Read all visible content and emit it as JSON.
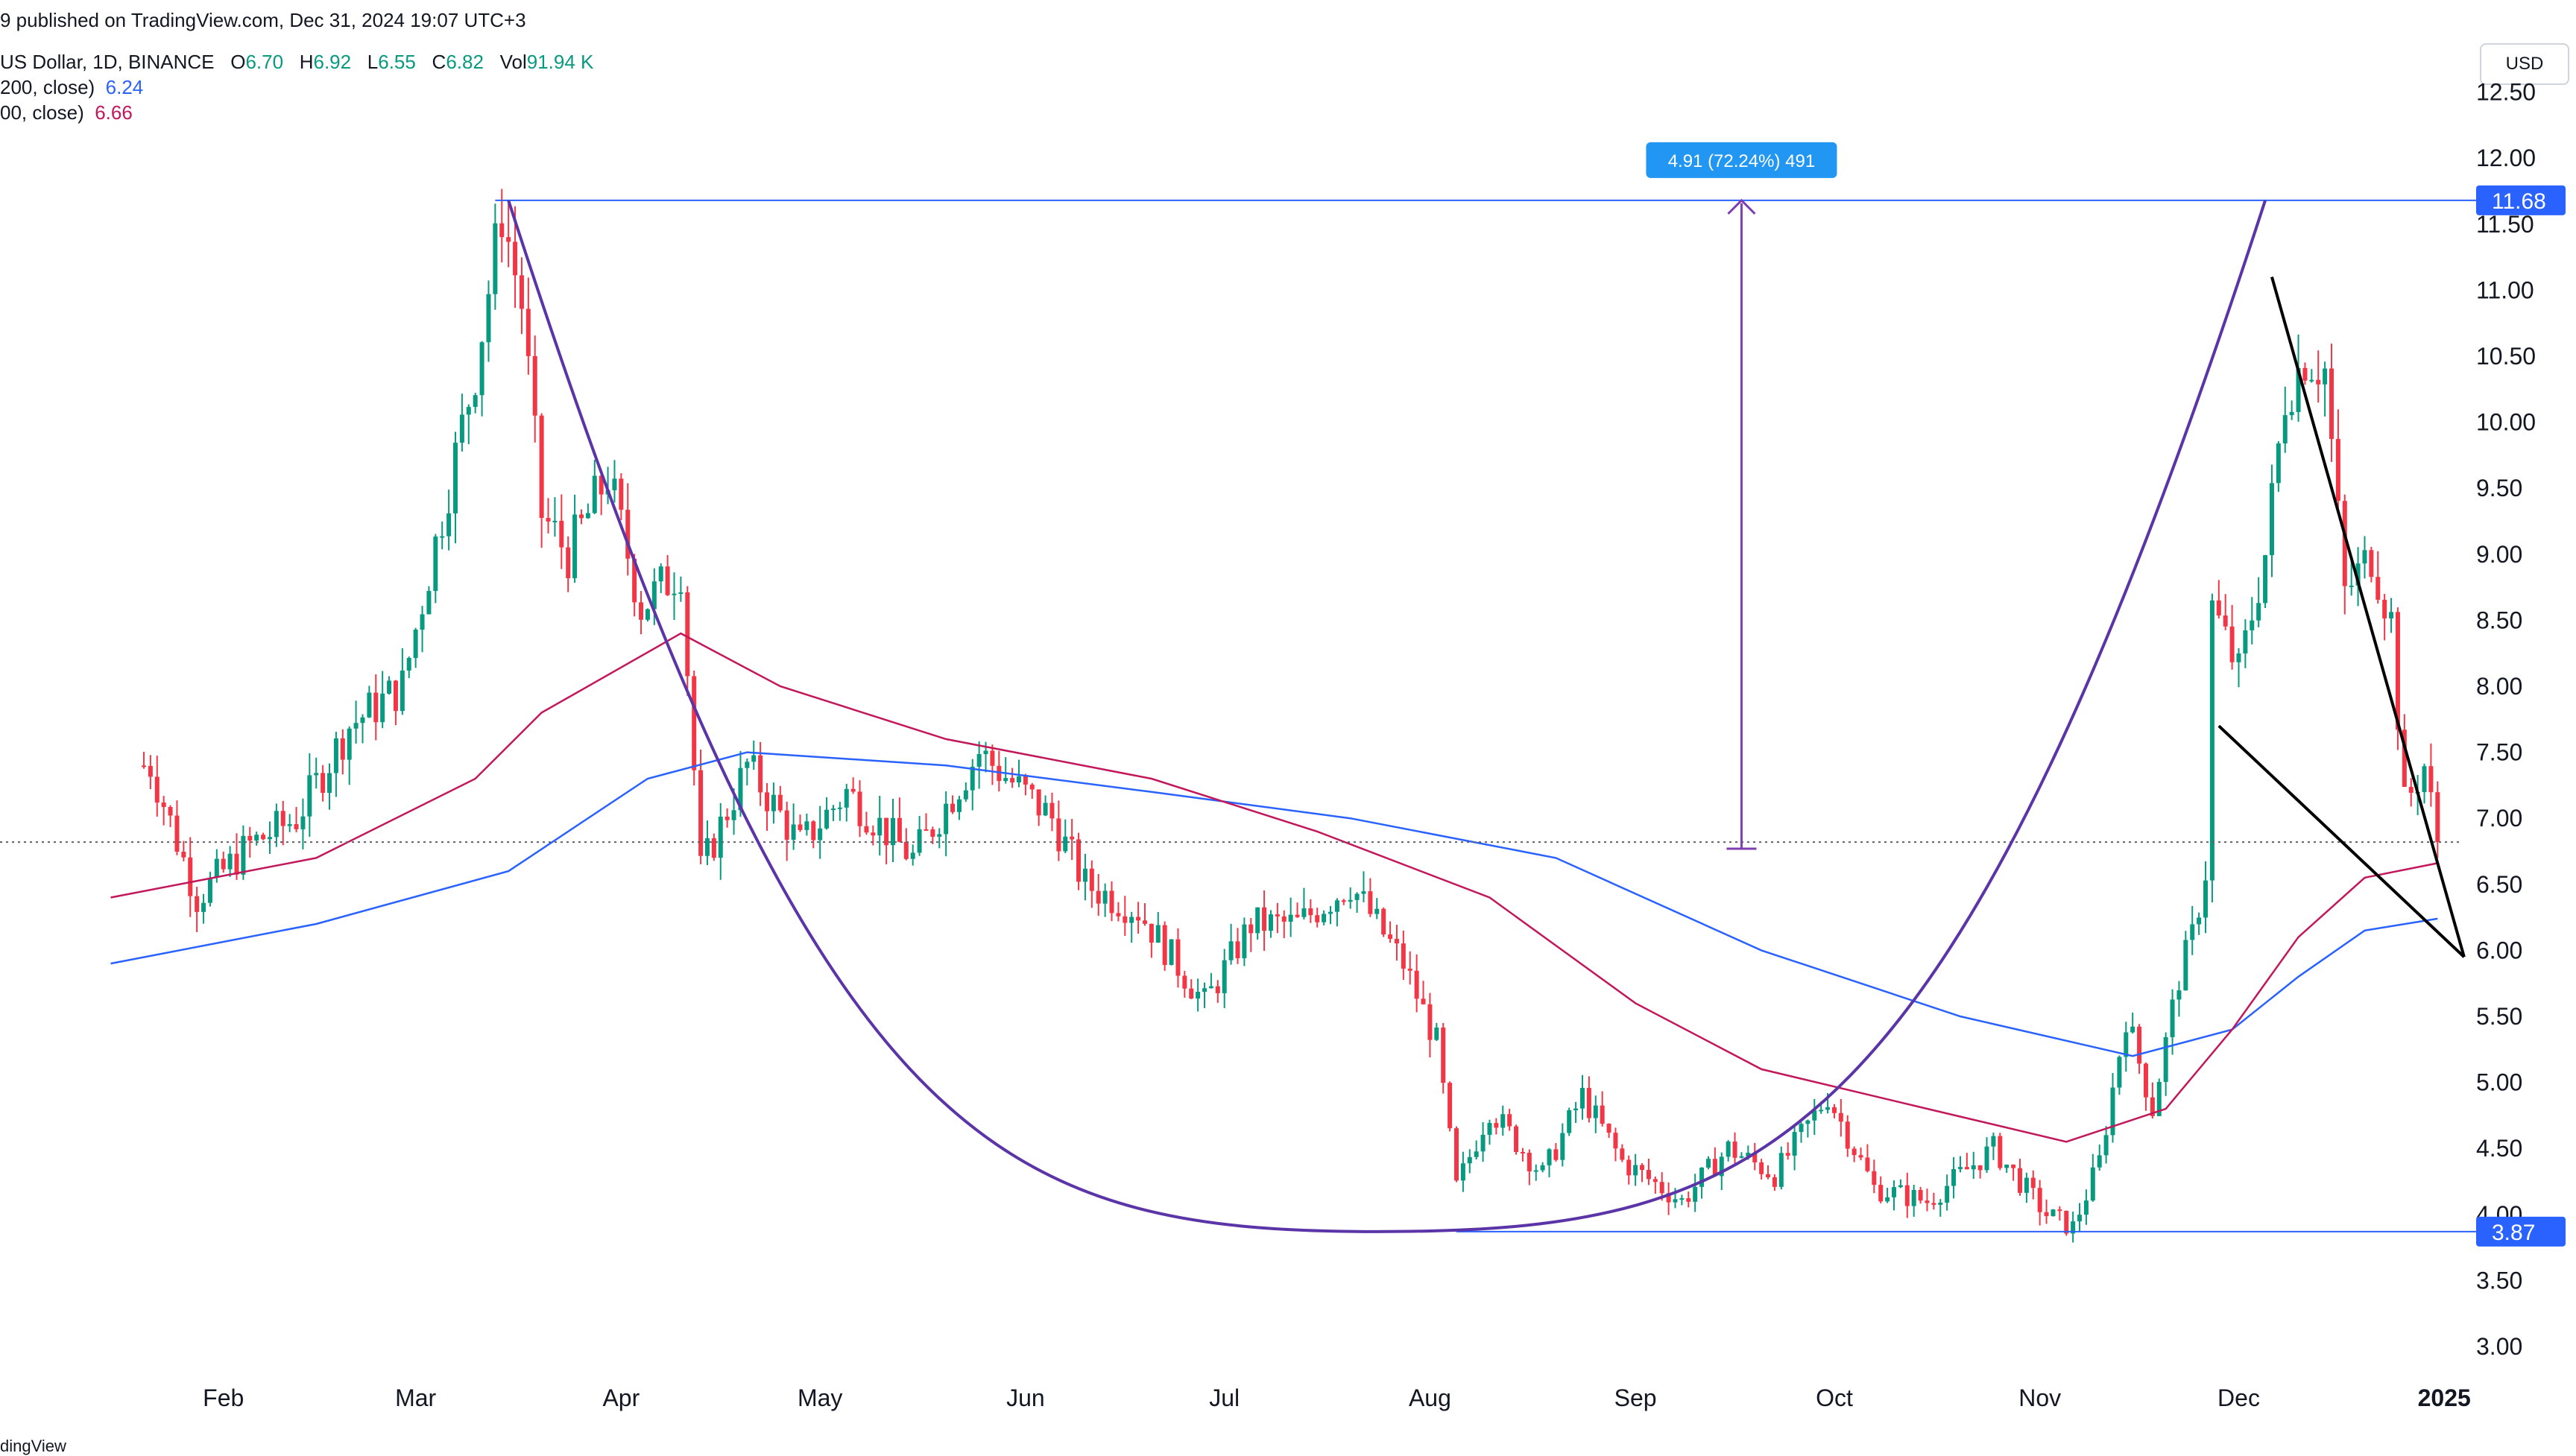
{
  "header": {
    "published": "9 published on TradingView.com, Dec 31, 2024 19:07 UTC+3",
    "symbol": "US Dollar, 1D, BINANCE",
    "o_label": "O",
    "o_value": "6.70",
    "h_label": "H",
    "h_value": "6.92",
    "l_label": "L",
    "l_value": "6.55",
    "c_label": "C",
    "c_value": "6.82",
    "vol_label": "Vol",
    "vol_value": "91.94 K",
    "ma1_label": "200, close)",
    "ma1_value": "6.24",
    "ma2_label": "00, close)",
    "ma2_value": "6.66"
  },
  "currency": "USD",
  "footer": "dingView",
  "colors": {
    "up": "#089981",
    "down": "#f23645",
    "ma200": "#2962ff",
    "ma100": "#c2185b",
    "cup": "#5b34a8",
    "measure": "#7e3fb2",
    "hline": "#2962ff",
    "wedge": "#000000"
  },
  "chart_data": {
    "type": "candlestick",
    "x_axis": {
      "tick_labels": [
        "Feb",
        "Mar",
        "Apr",
        "May",
        "Jun",
        "Jul",
        "Aug",
        "Sep",
        "Oct",
        "Nov",
        "Dec",
        "2025"
      ]
    },
    "y_axis": {
      "range": [
        2.7,
        12.9
      ],
      "tick_labels": [
        "3.00",
        "3.50",
        "4.00",
        "4.50",
        "5.00",
        "5.50",
        "6.00",
        "6.50",
        "7.00",
        "7.50",
        "8.00",
        "8.50",
        "9.00",
        "9.50",
        "10.00",
        "10.50",
        "11.00",
        "11.50",
        "12.00",
        "12.50"
      ],
      "position": "right"
    },
    "price_waypoints": [
      [
        "2024-01-21",
        7.4
      ],
      [
        "2024-01-28",
        6.4
      ],
      [
        "2024-02-05",
        6.8
      ],
      [
        "2024-02-12",
        7.0
      ],
      [
        "2024-02-20",
        7.7
      ],
      [
        "2024-02-28",
        8.0
      ],
      [
        "2024-03-05",
        9.3
      ],
      [
        "2024-03-10",
        10.4
      ],
      [
        "2024-03-14",
        11.6
      ],
      [
        "2024-03-17",
        10.9
      ],
      [
        "2024-03-20",
        9.3
      ],
      [
        "2024-03-24",
        9.0
      ],
      [
        "2024-03-30",
        9.6
      ],
      [
        "2024-04-04",
        8.6
      ],
      [
        "2024-04-10",
        8.9
      ],
      [
        "2024-04-13",
        6.6
      ],
      [
        "2024-04-20",
        7.4
      ],
      [
        "2024-04-28",
        6.8
      ],
      [
        "2024-05-05",
        7.2
      ],
      [
        "2024-05-15",
        6.7
      ],
      [
        "2024-05-25",
        7.5
      ],
      [
        "2024-06-05",
        7.0
      ],
      [
        "2024-06-10",
        6.5
      ],
      [
        "2024-06-18",
        6.3
      ],
      [
        "2024-06-28",
        5.6
      ],
      [
        "2024-07-05",
        6.2
      ],
      [
        "2024-07-12",
        6.2
      ],
      [
        "2024-07-20",
        6.5
      ],
      [
        "2024-07-28",
        5.9
      ],
      [
        "2024-08-02",
        5.3
      ],
      [
        "2024-08-05",
        4.2
      ],
      [
        "2024-08-10",
        4.8
      ],
      [
        "2024-08-18",
        4.3
      ],
      [
        "2024-08-24",
        4.9
      ],
      [
        "2024-08-30",
        4.4
      ],
      [
        "2024-09-08",
        4.1
      ],
      [
        "2024-09-15",
        4.5
      ],
      [
        "2024-09-22",
        4.3
      ],
      [
        "2024-09-30",
        4.9
      ],
      [
        "2024-10-07",
        4.2
      ],
      [
        "2024-10-15",
        4.1
      ],
      [
        "2024-10-25",
        4.5
      ],
      [
        "2024-11-02",
        4.0
      ],
      [
        "2024-11-06",
        3.9
      ],
      [
        "2024-11-10",
        4.4
      ],
      [
        "2024-11-14",
        5.5
      ],
      [
        "2024-11-18",
        4.8
      ],
      [
        "2024-11-22",
        5.8
      ],
      [
        "2024-11-24",
        6.1
      ],
      [
        "2024-11-26",
        6.6
      ],
      [
        "2024-11-27",
        8.6
      ],
      [
        "2024-12-01",
        8.1
      ],
      [
        "2024-12-05",
        9.0
      ],
      [
        "2024-12-08",
        10.2
      ],
      [
        "2024-12-11",
        10.5
      ],
      [
        "2024-12-14",
        10.4
      ],
      [
        "2024-12-17",
        8.7
      ],
      [
        "2024-12-21",
        9.0
      ],
      [
        "2024-12-24",
        8.5
      ],
      [
        "2024-12-26",
        7.1
      ],
      [
        "2024-12-29",
        7.4
      ],
      [
        "2024-12-31",
        6.82
      ]
    ],
    "series": [
      {
        "name": "MA (200, close)",
        "last_value": 6.24,
        "points": [
          [
            "2024-01-15",
            5.9
          ],
          [
            "2024-02-15",
            6.2
          ],
          [
            "2024-03-15",
            6.6
          ],
          [
            "2024-04-05",
            7.3
          ],
          [
            "2024-04-20",
            7.5
          ],
          [
            "2024-05-20",
            7.4
          ],
          [
            "2024-06-20",
            7.2
          ],
          [
            "2024-07-20",
            7.0
          ],
          [
            "2024-08-20",
            6.7
          ],
          [
            "2024-09-20",
            6.0
          ],
          [
            "2024-10-20",
            5.5
          ],
          [
            "2024-11-15",
            5.2
          ],
          [
            "2024-11-30",
            5.4
          ],
          [
            "2024-12-10",
            5.8
          ],
          [
            "2024-12-20",
            6.15
          ],
          [
            "2024-12-31",
            6.24
          ]
        ]
      },
      {
        "name": "MA (100, close)",
        "last_value": 6.66,
        "points": [
          [
            "2024-01-15",
            6.4
          ],
          [
            "2024-02-15",
            6.7
          ],
          [
            "2024-03-10",
            7.3
          ],
          [
            "2024-03-20",
            7.8
          ],
          [
            "2024-04-10",
            8.4
          ],
          [
            "2024-04-25",
            8.0
          ],
          [
            "2024-05-20",
            7.6
          ],
          [
            "2024-06-20",
            7.3
          ],
          [
            "2024-07-15",
            6.9
          ],
          [
            "2024-08-10",
            6.4
          ],
          [
            "2024-09-01",
            5.6
          ],
          [
            "2024-09-20",
            5.1
          ],
          [
            "2024-10-15",
            4.8
          ],
          [
            "2024-11-05",
            4.55
          ],
          [
            "2024-11-20",
            4.8
          ],
          [
            "2024-11-30",
            5.4
          ],
          [
            "2024-12-10",
            6.1
          ],
          [
            "2024-12-20",
            6.55
          ],
          [
            "2024-12-31",
            6.66
          ]
        ]
      }
    ],
    "horizontal_levels": [
      {
        "price": 11.68,
        "label": "11.68",
        "from": "2024-03-13"
      },
      {
        "price": 3.87,
        "label": "3.87",
        "from": "2024-08-05"
      }
    ],
    "last_price_line": 6.82,
    "measure": {
      "date": "2024-09-17",
      "from": 6.77,
      "to": 11.68,
      "label": "4.91 (72.24%) 491"
    },
    "cup": {
      "start": [
        "2024-03-15",
        11.68
      ],
      "bottom": [
        "2024-07-24",
        3.87
      ],
      "end": [
        "2024-12-05",
        11.68
      ]
    },
    "falling_wedge": {
      "upper": [
        [
          "2024-12-06",
          11.1
        ],
        [
          "2025-01-04",
          5.95
        ]
      ],
      "lower": [
        [
          "2024-11-28",
          7.7
        ],
        [
          "2025-01-04",
          5.95
        ]
      ]
    }
  }
}
